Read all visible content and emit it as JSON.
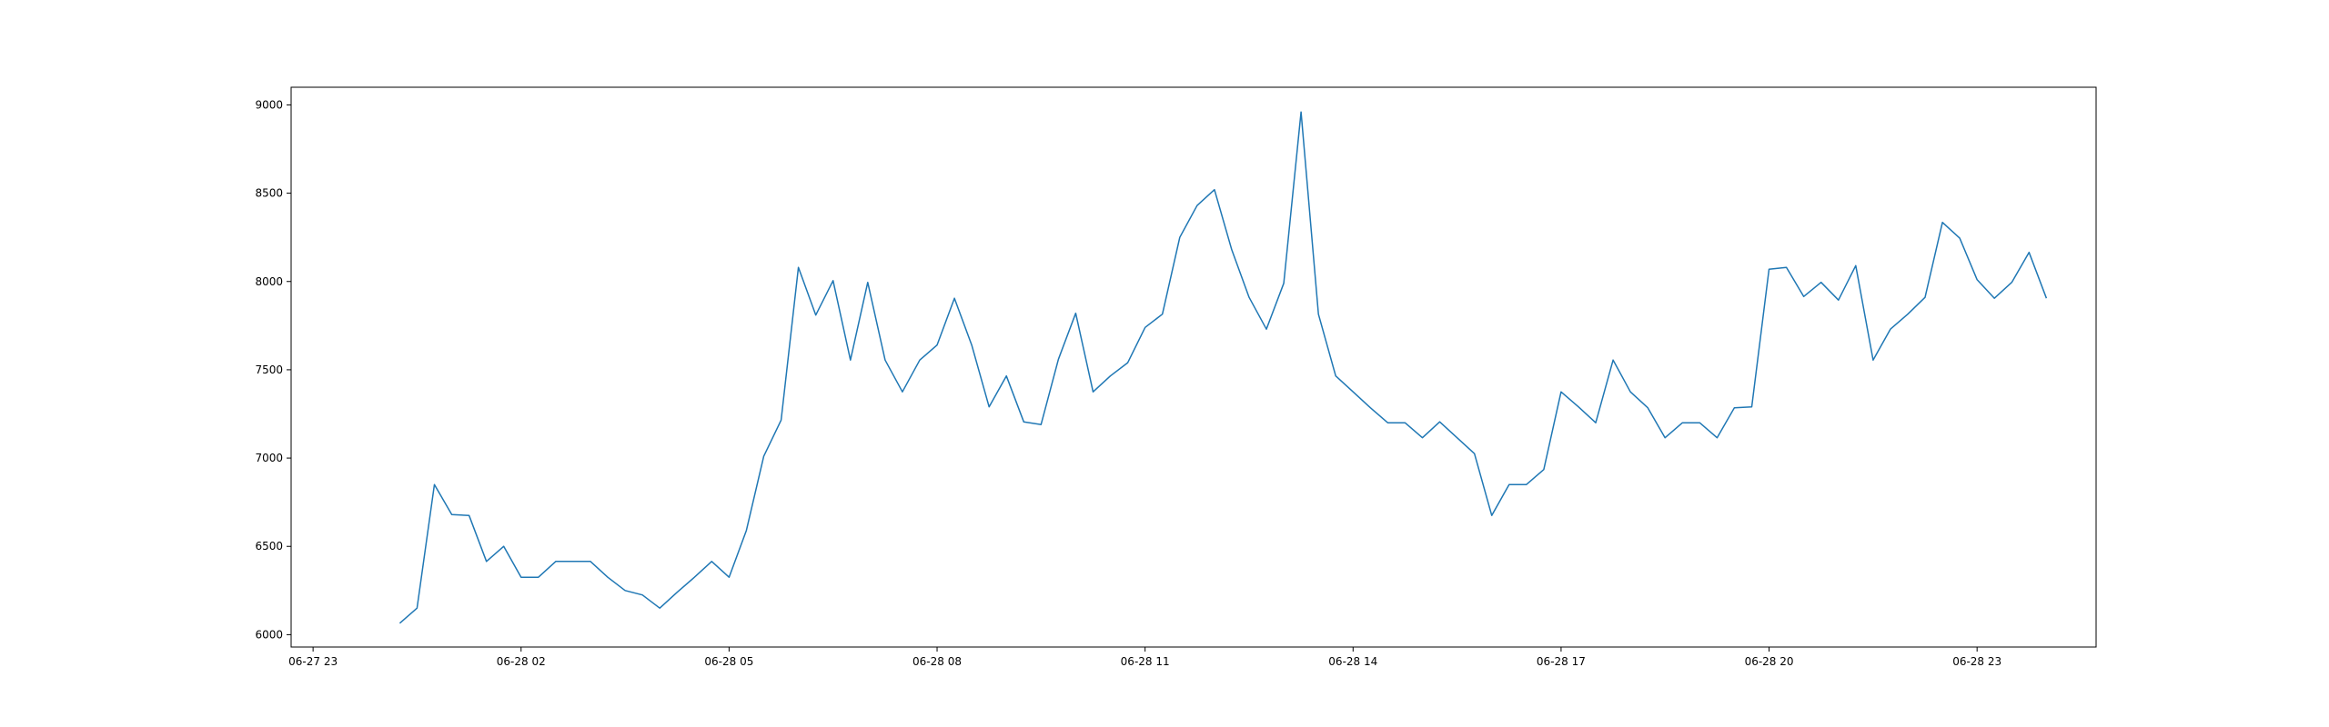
{
  "chart_data": {
    "type": "line",
    "title": "",
    "xlabel": "",
    "ylabel": "",
    "grid": false,
    "legend": "none",
    "x_ticks": [
      "06-27 23",
      "06-28 02",
      "06-28 05",
      "06-28 08",
      "06-28 11",
      "06-28 14",
      "06-28 17",
      "06-28 20",
      "06-28 23"
    ],
    "x_tick_times": [
      "2022-06-27 23:00",
      "2022-06-28 02:00",
      "2022-06-28 05:00",
      "2022-06-28 08:00",
      "2022-06-28 11:00",
      "2022-06-28 14:00",
      "2022-06-28 17:00",
      "2022-06-28 20:00",
      "2022-06-28 23:00"
    ],
    "xlim": [
      "2022-06-27 22:41",
      "2022-06-29 00:43"
    ],
    "y_ticks": [
      6000,
      6500,
      7000,
      7500,
      8000,
      8500,
      9000
    ],
    "ylim": [
      5930,
      9100
    ],
    "series": [
      {
        "color": "#1f77b4",
        "x": [
          "2022-06-28 00:15",
          "2022-06-28 00:30",
          "2022-06-28 00:45",
          "2022-06-28 01:00",
          "2022-06-28 01:15",
          "2022-06-28 01:30",
          "2022-06-28 01:45",
          "2022-06-28 02:00",
          "2022-06-28 02:15",
          "2022-06-28 02:30",
          "2022-06-28 02:45",
          "2022-06-28 03:00",
          "2022-06-28 03:15",
          "2022-06-28 03:30",
          "2022-06-28 03:45",
          "2022-06-28 04:00",
          "2022-06-28 04:15",
          "2022-06-28 04:30",
          "2022-06-28 04:45",
          "2022-06-28 05:00",
          "2022-06-28 05:15",
          "2022-06-28 05:30",
          "2022-06-28 05:45",
          "2022-06-28 06:00",
          "2022-06-28 06:15",
          "2022-06-28 06:30",
          "2022-06-28 06:45",
          "2022-06-28 07:00",
          "2022-06-28 07:15",
          "2022-06-28 07:30",
          "2022-06-28 07:45",
          "2022-06-28 08:00",
          "2022-06-28 08:15",
          "2022-06-28 08:30",
          "2022-06-28 08:45",
          "2022-06-28 09:00",
          "2022-06-28 09:15",
          "2022-06-28 09:30",
          "2022-06-28 09:45",
          "2022-06-28 10:00",
          "2022-06-28 10:15",
          "2022-06-28 10:30",
          "2022-06-28 10:45",
          "2022-06-28 11:00",
          "2022-06-28 11:15",
          "2022-06-28 11:30",
          "2022-06-28 11:45",
          "2022-06-28 12:00",
          "2022-06-28 12:15",
          "2022-06-28 12:30",
          "2022-06-28 12:45",
          "2022-06-28 13:00",
          "2022-06-28 13:15",
          "2022-06-28 13:30",
          "2022-06-28 13:45",
          "2022-06-28 14:00",
          "2022-06-28 14:15",
          "2022-06-28 14:30",
          "2022-06-28 14:45",
          "2022-06-28 15:00",
          "2022-06-28 15:15",
          "2022-06-28 15:30",
          "2022-06-28 15:45",
          "2022-06-28 16:00",
          "2022-06-28 16:15",
          "2022-06-28 16:30",
          "2022-06-28 16:45",
          "2022-06-28 17:00",
          "2022-06-28 17:15",
          "2022-06-28 17:30",
          "2022-06-28 17:45",
          "2022-06-28 18:00",
          "2022-06-28 18:15",
          "2022-06-28 18:30",
          "2022-06-28 18:45",
          "2022-06-28 19:00",
          "2022-06-28 19:15",
          "2022-06-28 19:30",
          "2022-06-28 19:45",
          "2022-06-28 20:00",
          "2022-06-28 20:15",
          "2022-06-28 20:30",
          "2022-06-28 20:45",
          "2022-06-28 21:00",
          "2022-06-28 21:15",
          "2022-06-28 21:30",
          "2022-06-28 21:45",
          "2022-06-28 22:00",
          "2022-06-28 22:15",
          "2022-06-28 22:30",
          "2022-06-28 22:45",
          "2022-06-28 23:00",
          "2022-06-28 23:15",
          "2022-06-28 23:30",
          "2022-06-28 23:45",
          "2022-06-29 00:00"
        ],
        "y": [
          6065,
          6150,
          6850,
          6680,
          6675,
          6415,
          6500,
          6325,
          6325,
          6415,
          6415,
          6415,
          6325,
          6250,
          6225,
          6150,
          6240,
          6325,
          6415,
          6325,
          6590,
          7010,
          7215,
          8080,
          7810,
          8005,
          7555,
          7995,
          7555,
          7375,
          7555,
          7640,
          7905,
          7640,
          7290,
          7465,
          7205,
          7190,
          7560,
          7820,
          7375,
          7465,
          7540,
          7740,
          7815,
          8250,
          8430,
          8520,
          8180,
          7910,
          7730,
          7990,
          8960,
          7815,
          7465,
          7375,
          7285,
          7200,
          7200,
          7115,
          7205,
          7115,
          7025,
          6675,
          6850,
          6850,
          6935,
          7375,
          7290,
          7200,
          7555,
          7375,
          7285,
          7115,
          7200,
          7200,
          7115,
          7285,
          7290,
          8070,
          8080,
          7915,
          7995,
          7895,
          8090,
          7555,
          7730,
          7815,
          7910,
          8335,
          8245,
          8010,
          7905,
          7995,
          8165,
          7905
        ]
      }
    ]
  }
}
